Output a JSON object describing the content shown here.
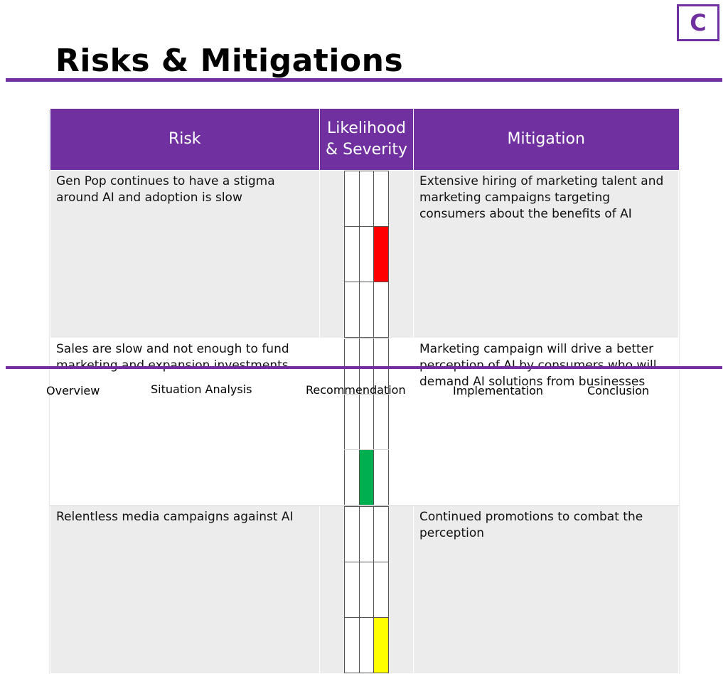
{
  "logo": {
    "letter": "C"
  },
  "page_title": "Risks & Mitigations",
  "table": {
    "headers": {
      "risk": "Risk",
      "likelihood_line1": "Likelihood",
      "likelihood_line2": "& Severity",
      "mitigation": "Mitigation"
    },
    "rows": [
      {
        "risk": "Gen Pop continues to have a stigma around AI and adoption is slow",
        "matrix_highlight": {
          "row": 1,
          "col": 2,
          "color": "#ff0000"
        },
        "mitigation": "Extensive hiring of marketing talent and marketing campaigns targeting consumers about the benefits of AI"
      },
      {
        "risk": "Sales are slow and not enough to fund marketing and expansion investments",
        "matrix_highlight": {
          "row": 2,
          "col": 1,
          "color": "#00b050"
        },
        "mitigation": "Marketing campaign will drive a better perception of AI by consumers who will demand AI solutions from businesses"
      },
      {
        "risk": "Relentless media campaigns against AI",
        "matrix_highlight": {
          "row": 2,
          "col": 2,
          "color": "#ffff00"
        },
        "mitigation": "Continued promotions to combat the perception"
      }
    ]
  },
  "nav": {
    "overview": "Overview",
    "situation_analysis": "Situation Analysis",
    "recommendation": "Recommendation",
    "implementation": "Implementation",
    "conclusion": "Conclusion"
  },
  "colors": {
    "accent": "#7030a0"
  }
}
